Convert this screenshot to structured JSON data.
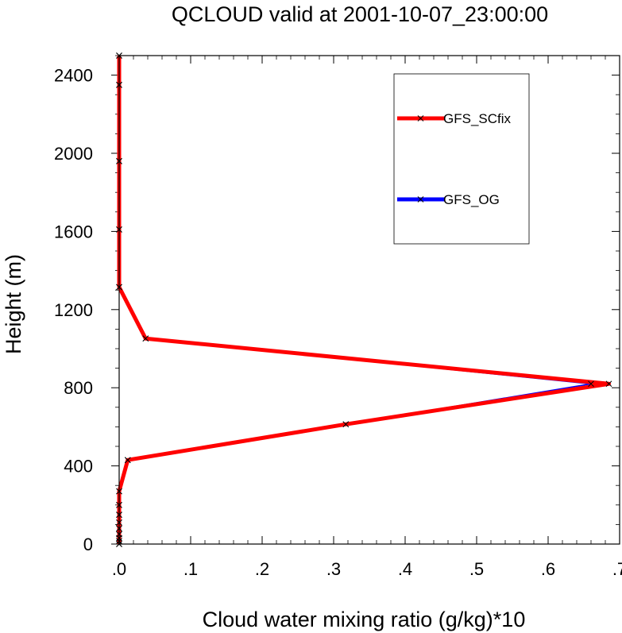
{
  "chart_data": {
    "type": "line",
    "title": "QCLOUD valid at 2001-10-07_23:00:00",
    "xlabel": "Cloud water mixing ratio (g/kg)*10",
    "ylabel": "Height (m)",
    "xlim": [
      0,
      0.7
    ],
    "ylim": [
      0,
      2500
    ],
    "xticks": [
      {
        "value": 0,
        "label": ".0"
      },
      {
        "value": 0.1,
        "label": ".1"
      },
      {
        "value": 0.2,
        "label": ".2"
      },
      {
        "value": 0.3,
        "label": ".3"
      },
      {
        "value": 0.4,
        "label": ".4"
      },
      {
        "value": 0.5,
        "label": ".5"
      },
      {
        "value": 0.6,
        "label": ".6"
      },
      {
        "value": 0.7,
        "label": ".7"
      }
    ],
    "yticks": [
      {
        "value": 0,
        "label": "0"
      },
      {
        "value": 400,
        "label": "400"
      },
      {
        "value": 800,
        "label": "800"
      },
      {
        "value": 1200,
        "label": "1200"
      },
      {
        "value": 1600,
        "label": "1600"
      },
      {
        "value": 2000,
        "label": "2000"
      },
      {
        "value": 2400,
        "label": "2400"
      }
    ],
    "legend_position": "top-right",
    "grid": false,
    "series": [
      {
        "name": "GFS_OG",
        "color": "#0000ff",
        "points": [
          [
            0,
            0
          ],
          [
            0,
            15
          ],
          [
            0,
            30
          ],
          [
            0,
            50
          ],
          [
            0,
            80
          ],
          [
            0,
            110
          ],
          [
            0,
            150
          ],
          [
            0,
            200
          ],
          [
            0,
            270
          ],
          [
            0.012,
            430
          ],
          [
            0.317,
            613
          ],
          [
            0.66,
            820
          ],
          [
            0.037,
            1052
          ],
          [
            0,
            1315
          ],
          [
            0,
            1610
          ],
          [
            0,
            1960
          ],
          [
            0,
            2350
          ],
          [
            0,
            2500
          ]
        ]
      },
      {
        "name": "GFS_SCfix",
        "color": "#ff0000",
        "points": [
          [
            0,
            0
          ],
          [
            0,
            15
          ],
          [
            0,
            30
          ],
          [
            0,
            50
          ],
          [
            0,
            80
          ],
          [
            0,
            110
          ],
          [
            0,
            150
          ],
          [
            0,
            200
          ],
          [
            0,
            270
          ],
          [
            0.012,
            430
          ],
          [
            0.317,
            613
          ],
          [
            0.685,
            820
          ],
          [
            0.037,
            1052
          ],
          [
            0,
            1315
          ],
          [
            0,
            1610
          ],
          [
            0,
            1960
          ],
          [
            0,
            2350
          ],
          [
            0,
            2500
          ]
        ]
      }
    ]
  }
}
